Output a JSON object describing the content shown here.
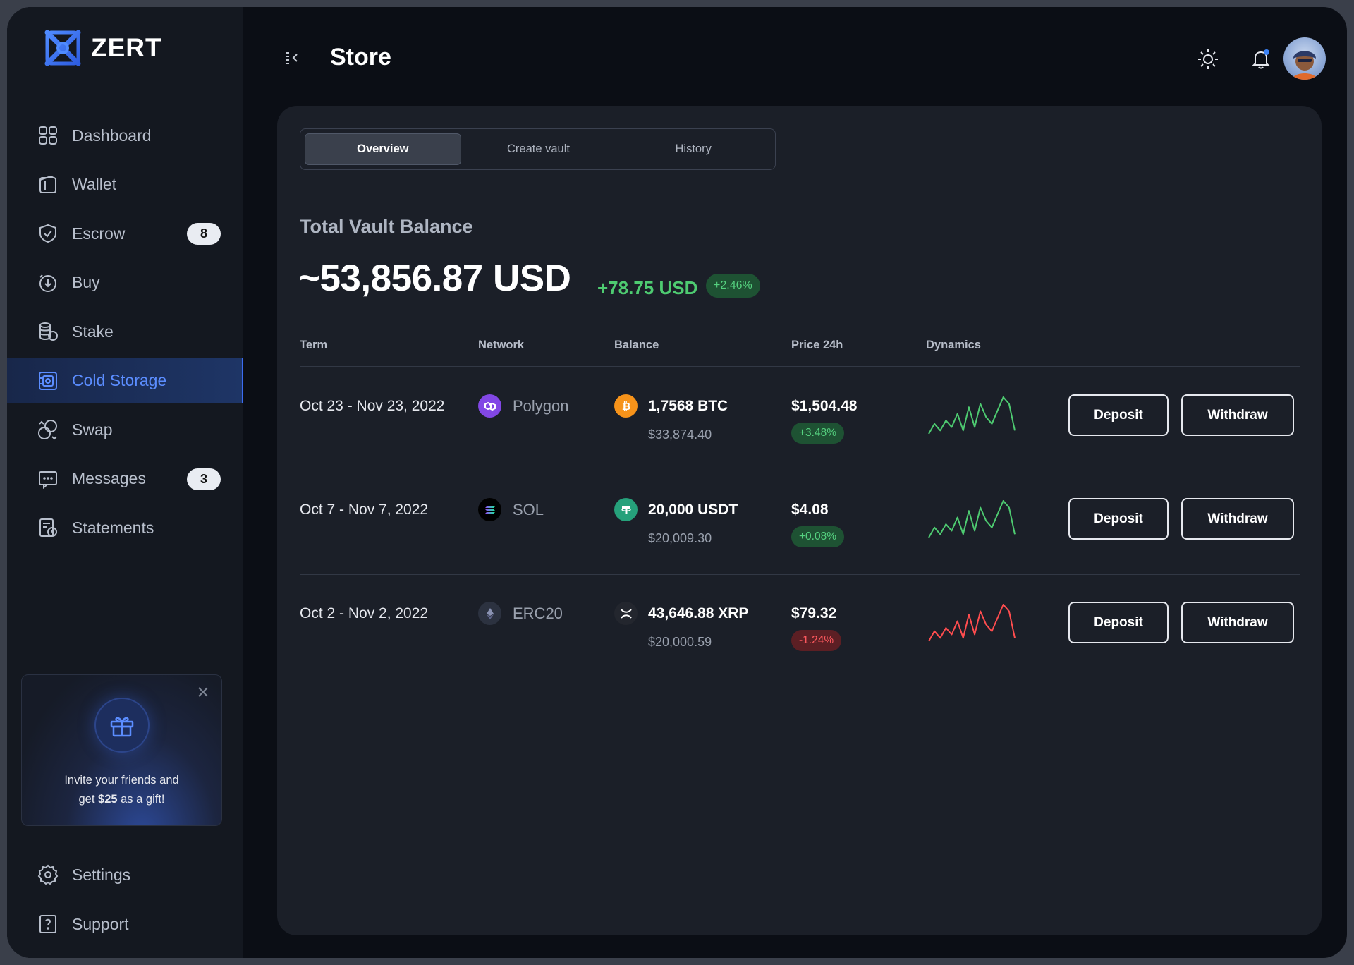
{
  "app": {
    "brand": "ZERT"
  },
  "header": {
    "title": "Store"
  },
  "sidebar": {
    "items": [
      {
        "label": "Dashboard",
        "icon": "grid-icon"
      },
      {
        "label": "Wallet",
        "icon": "wallet-icon"
      },
      {
        "label": "Escrow",
        "icon": "shield-icon",
        "badge": "8"
      },
      {
        "label": "Buy",
        "icon": "coin-buy-icon"
      },
      {
        "label": "Stake",
        "icon": "coins-stack-icon"
      },
      {
        "label": "Cold Storage",
        "icon": "safe-icon",
        "active": true
      },
      {
        "label": "Swap",
        "icon": "swap-icon"
      },
      {
        "label": "Messages",
        "icon": "message-icon",
        "badge": "3"
      },
      {
        "label": "Statements",
        "icon": "statement-icon"
      }
    ],
    "bottom": [
      {
        "label": "Settings",
        "icon": "gear-icon"
      },
      {
        "label": "Support",
        "icon": "help-icon"
      }
    ],
    "promo": {
      "line1": "Invite your friends and",
      "line2_pre": "get ",
      "line2_bold": "$25",
      "line2_post": " as a gift!"
    }
  },
  "tabs": [
    {
      "label": "Overview",
      "active": true
    },
    {
      "label": "Create vault"
    },
    {
      "label": "History"
    }
  ],
  "vault": {
    "label": "Total Vault Balance",
    "total": "~53,856.87 USD",
    "change": "+78.75 USD",
    "change_pct": "+2.46%"
  },
  "table": {
    "headers": {
      "term": "Term",
      "network": "Network",
      "balance": "Balance",
      "price": "Price 24h",
      "dynamics": "Dynamics"
    },
    "rows": [
      {
        "term": "Oct 23 - Nov 23, 2022",
        "network": "Polygon",
        "network_icon": "polygon-icon",
        "balance": "1,7568 BTC",
        "coin_icon": "bitcoin-icon",
        "balance_usd": "$33,874.40",
        "price": "$1,504.48",
        "change": "+3.48%",
        "trend": "up",
        "spark": [
          3,
          6,
          4,
          7,
          5,
          9,
          4,
          11,
          5,
          12,
          8,
          6,
          10,
          14,
          12,
          4
        ]
      },
      {
        "term": "Oct 7 - Nov 7, 2022",
        "network": "SOL",
        "network_icon": "solana-icon",
        "balance": "20,000 USDT",
        "coin_icon": "tether-icon",
        "balance_usd": "$20,009.30",
        "price": "$4.08",
        "change": "+0.08%",
        "trend": "up",
        "spark": [
          3,
          6,
          4,
          7,
          5,
          9,
          4,
          11,
          5,
          12,
          8,
          6,
          10,
          14,
          12,
          4
        ]
      },
      {
        "term": "Oct 2 - Nov 2, 2022",
        "network": "ERC20",
        "network_icon": "ethereum-icon",
        "balance": "43,646.88 XRP",
        "coin_icon": "xrp-icon",
        "balance_usd": "$20,000.59",
        "price": "$79.32",
        "change": "-1.24%",
        "trend": "down",
        "spark": [
          3,
          6,
          4,
          7,
          5,
          9,
          4,
          11,
          5,
          12,
          8,
          6,
          10,
          14,
          12,
          4
        ]
      }
    ],
    "deposit_label": "Deposit",
    "withdraw_label": "Withdraw"
  },
  "colors": {
    "accent": "#3b6cf0",
    "up": "#4ecb71",
    "down": "#ff4d4f",
    "bg": "#0b0e15",
    "card": "#1b1f28"
  }
}
